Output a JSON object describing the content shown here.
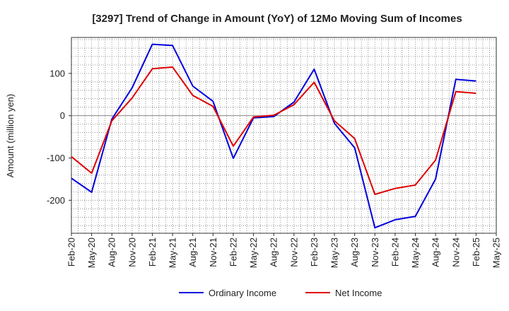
{
  "chart_data": {
    "type": "line",
    "title": "[3297]  Trend of Change in Amount (YoY) of 12Mo Moving Sum of Incomes",
    "xlabel": "",
    "ylabel": "Amount (million yen)",
    "ylim": [
      -278,
      185
    ],
    "yticks": [
      100,
      0,
      -100,
      -200
    ],
    "categories": [
      "Feb-20",
      "May-20",
      "Aug-20",
      "Nov-20",
      "Feb-21",
      "May-21",
      "Aug-21",
      "Nov-21",
      "Feb-22",
      "May-22",
      "Aug-22",
      "Nov-22",
      "Feb-23",
      "May-23",
      "Aug-23",
      "Nov-23",
      "Feb-24",
      "May-24",
      "Aug-24",
      "Nov-24",
      "Feb-25",
      "May-25"
    ],
    "grid": true,
    "legend_position": "bottom",
    "series": [
      {
        "name": "Ordinary Income",
        "color": "#0000dd",
        "values": [
          -148,
          -181,
          -8,
          66,
          169,
          166,
          70,
          34,
          -101,
          -5,
          -2,
          32,
          110,
          -18,
          -76,
          -265,
          -246,
          -238,
          -150,
          86,
          82,
          null
        ]
      },
      {
        "name": "Net Income",
        "color": "#dd0000",
        "values": [
          -97,
          -136,
          -12,
          42,
          111,
          115,
          48,
          22,
          -72,
          -3,
          1,
          26,
          79,
          -12,
          -54,
          -186,
          -172,
          -164,
          -105,
          57,
          53,
          null
        ]
      }
    ]
  }
}
